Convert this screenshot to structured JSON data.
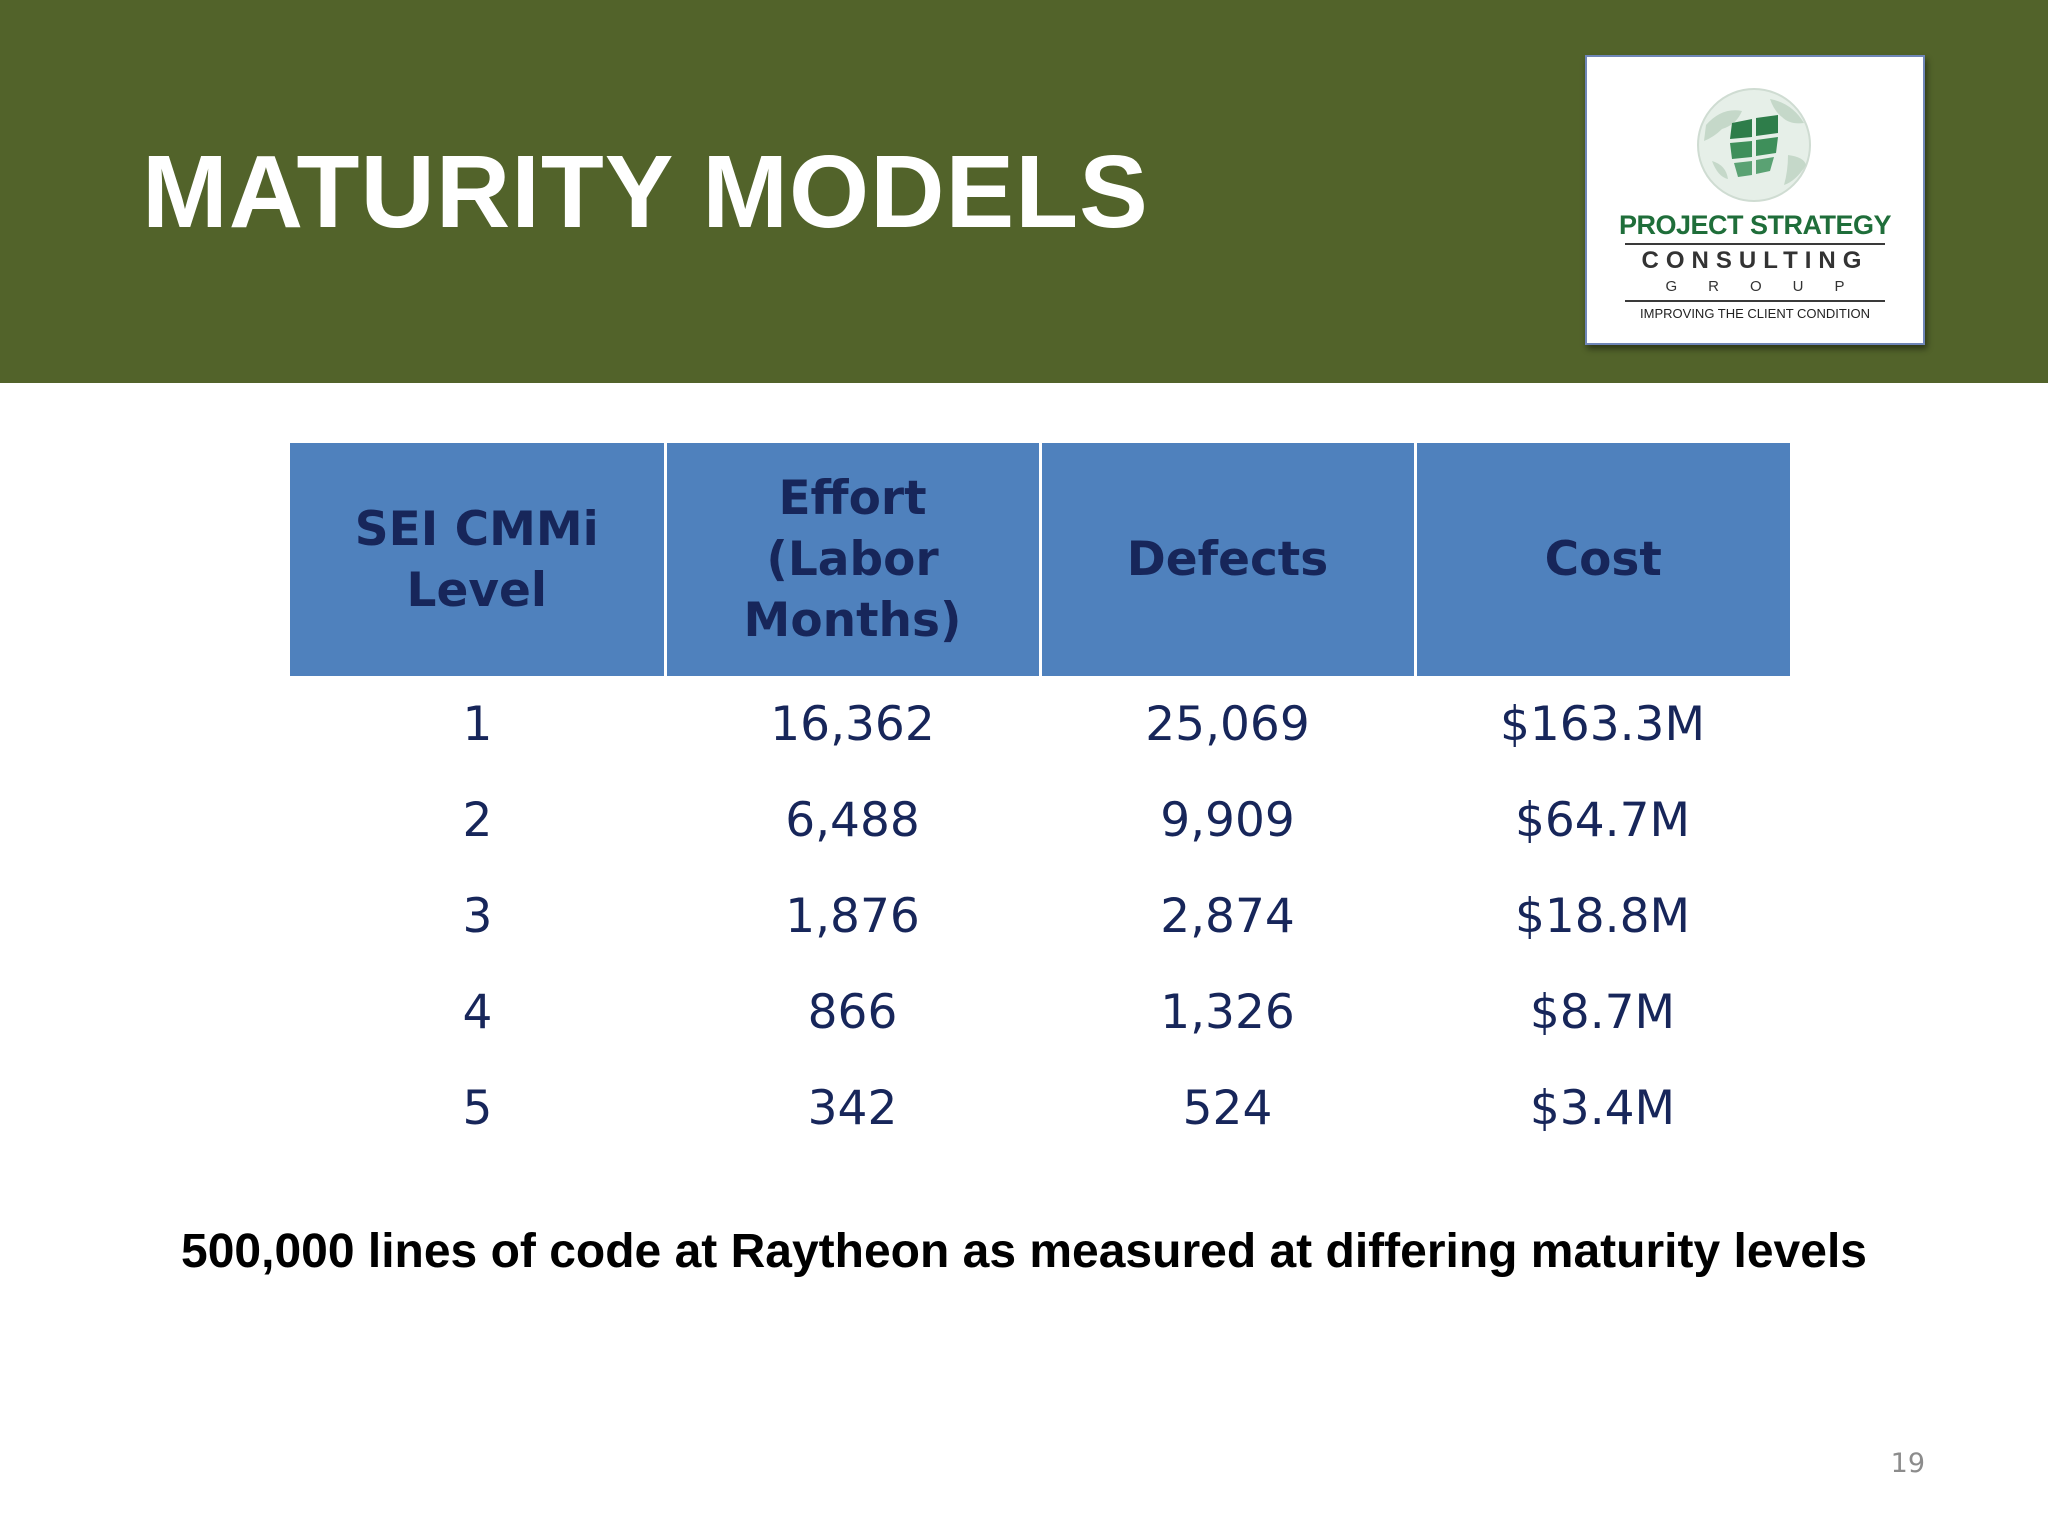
{
  "slide": {
    "title": "MATURITY MODELS",
    "caption": "500,000 lines of code at Raytheon as measured at differing maturity levels",
    "page_number": "19"
  },
  "logo": {
    "line1": "PROJECT STRATEGY",
    "line2": "CONSULTING",
    "line3": "GROUP",
    "tagline": "IMPROVING THE CLIENT CONDITION"
  },
  "table": {
    "headers": [
      [
        "SEI CMMi",
        "Level"
      ],
      [
        "Effort",
        "(Labor",
        "Months)"
      ],
      [
        "Defects"
      ],
      [
        "Cost"
      ]
    ],
    "rows": [
      [
        "1",
        "16,362",
        "25,069",
        "$163.3M"
      ],
      [
        "2",
        "6,488",
        "9,909",
        "$64.7M"
      ],
      [
        "3",
        "1,876",
        "2,874",
        "$18.8M"
      ],
      [
        "4",
        "866",
        "1,326",
        "$8.7M"
      ],
      [
        "5",
        "342",
        "524",
        "$3.4M"
      ]
    ]
  },
  "colors": {
    "header_band": "#52632a",
    "table_header": "#4f81bd",
    "table_text": "#17265a",
    "logo_green": "#1f6e3a"
  }
}
